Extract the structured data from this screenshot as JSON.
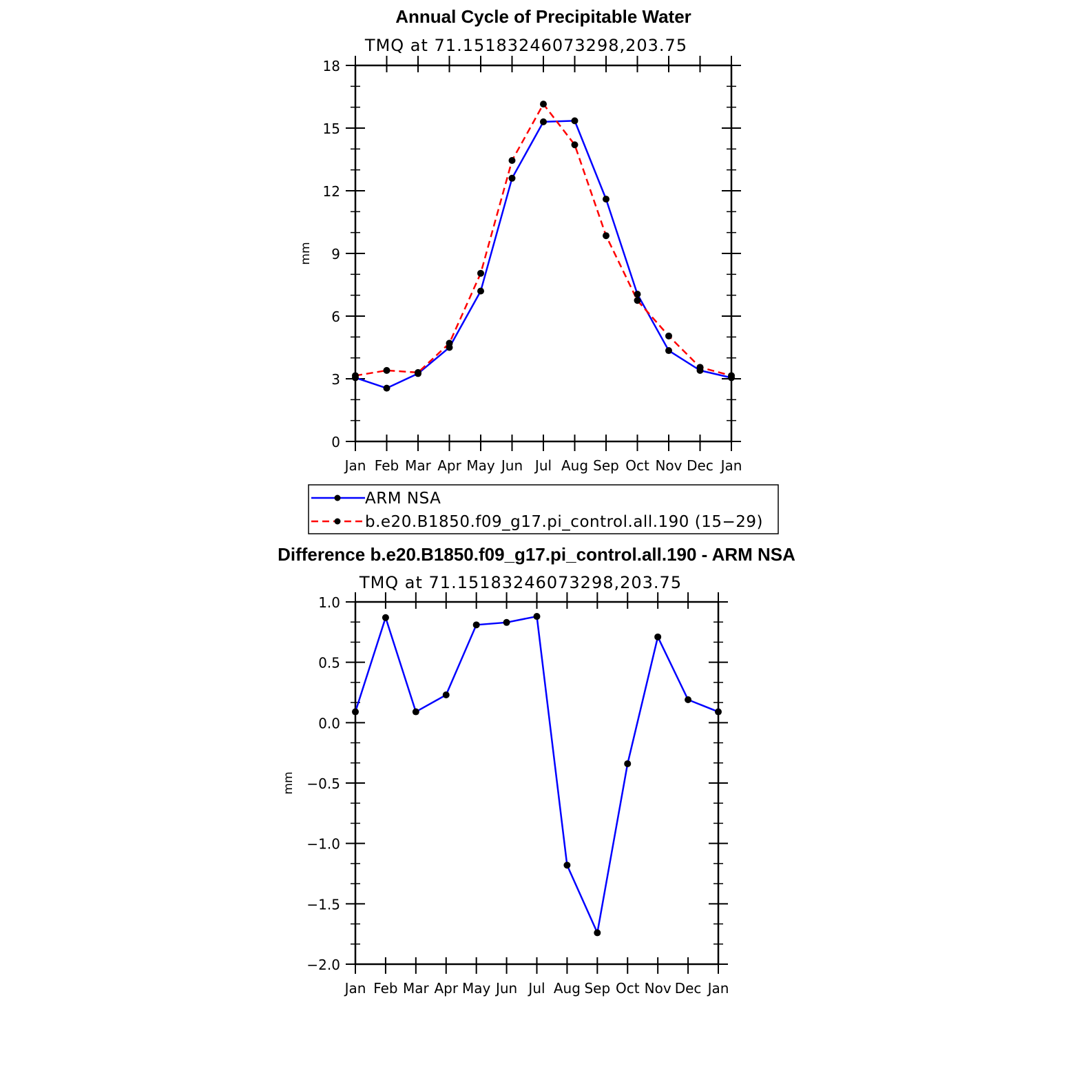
{
  "chart_data": [
    {
      "type": "line",
      "title": "Annual Cycle of Precipitable Water",
      "subtitle": "TMQ at 71.15183246073298,203.75",
      "ylabel": "mm",
      "categories": [
        "Jan",
        "Feb",
        "Mar",
        "Apr",
        "May",
        "Jun",
        "Jul",
        "Aug",
        "Sep",
        "Oct",
        "Nov",
        "Dec",
        "Jan"
      ],
      "ylim": [
        0,
        18
      ],
      "yticks": [
        "0",
        "3",
        "6",
        "9",
        "12",
        "15",
        "18"
      ],
      "legend_placement": "bottom",
      "series": [
        {
          "name": "ARM NSA",
          "color": "#0000ff",
          "dash": "solid",
          "values": [
            3.05,
            2.55,
            3.25,
            4.5,
            7.2,
            12.6,
            15.3,
            15.35,
            11.6,
            7.05,
            4.35,
            3.4,
            3.05
          ]
        },
        {
          "name": "b.e20.B1850.f09_g17.pi_control.all.190 (15−29)",
          "color": "#ff0000",
          "dash": "dashed",
          "values": [
            3.15,
            3.4,
            3.3,
            4.7,
            8.05,
            13.45,
            16.15,
            14.2,
            9.85,
            6.75,
            5.05,
            3.55,
            3.15
          ]
        }
      ]
    },
    {
      "type": "line",
      "title": "Difference b.e20.B1850.f09_g17.pi_control.all.190 - ARM NSA",
      "subtitle": "TMQ at 71.15183246073298,203.75",
      "ylabel": "mm",
      "categories": [
        "Jan",
        "Feb",
        "Mar",
        "Apr",
        "May",
        "Jun",
        "Jul",
        "Aug",
        "Sep",
        "Oct",
        "Nov",
        "Dec",
        "Jan"
      ],
      "ylim": [
        -2.0,
        1.0
      ],
      "yticks": [
        "−2.0",
        "−1.5",
        "−1.0",
        "−0.5",
        "0.0",
        "0.5",
        "1.0"
      ],
      "series": [
        {
          "color": "#0000ff",
          "dash": "solid",
          "values": [
            0.09,
            0.87,
            0.09,
            0.23,
            0.81,
            0.83,
            0.88,
            -1.18,
            -1.74,
            -0.34,
            0.71,
            0.19,
            0.09
          ]
        }
      ]
    }
  ]
}
